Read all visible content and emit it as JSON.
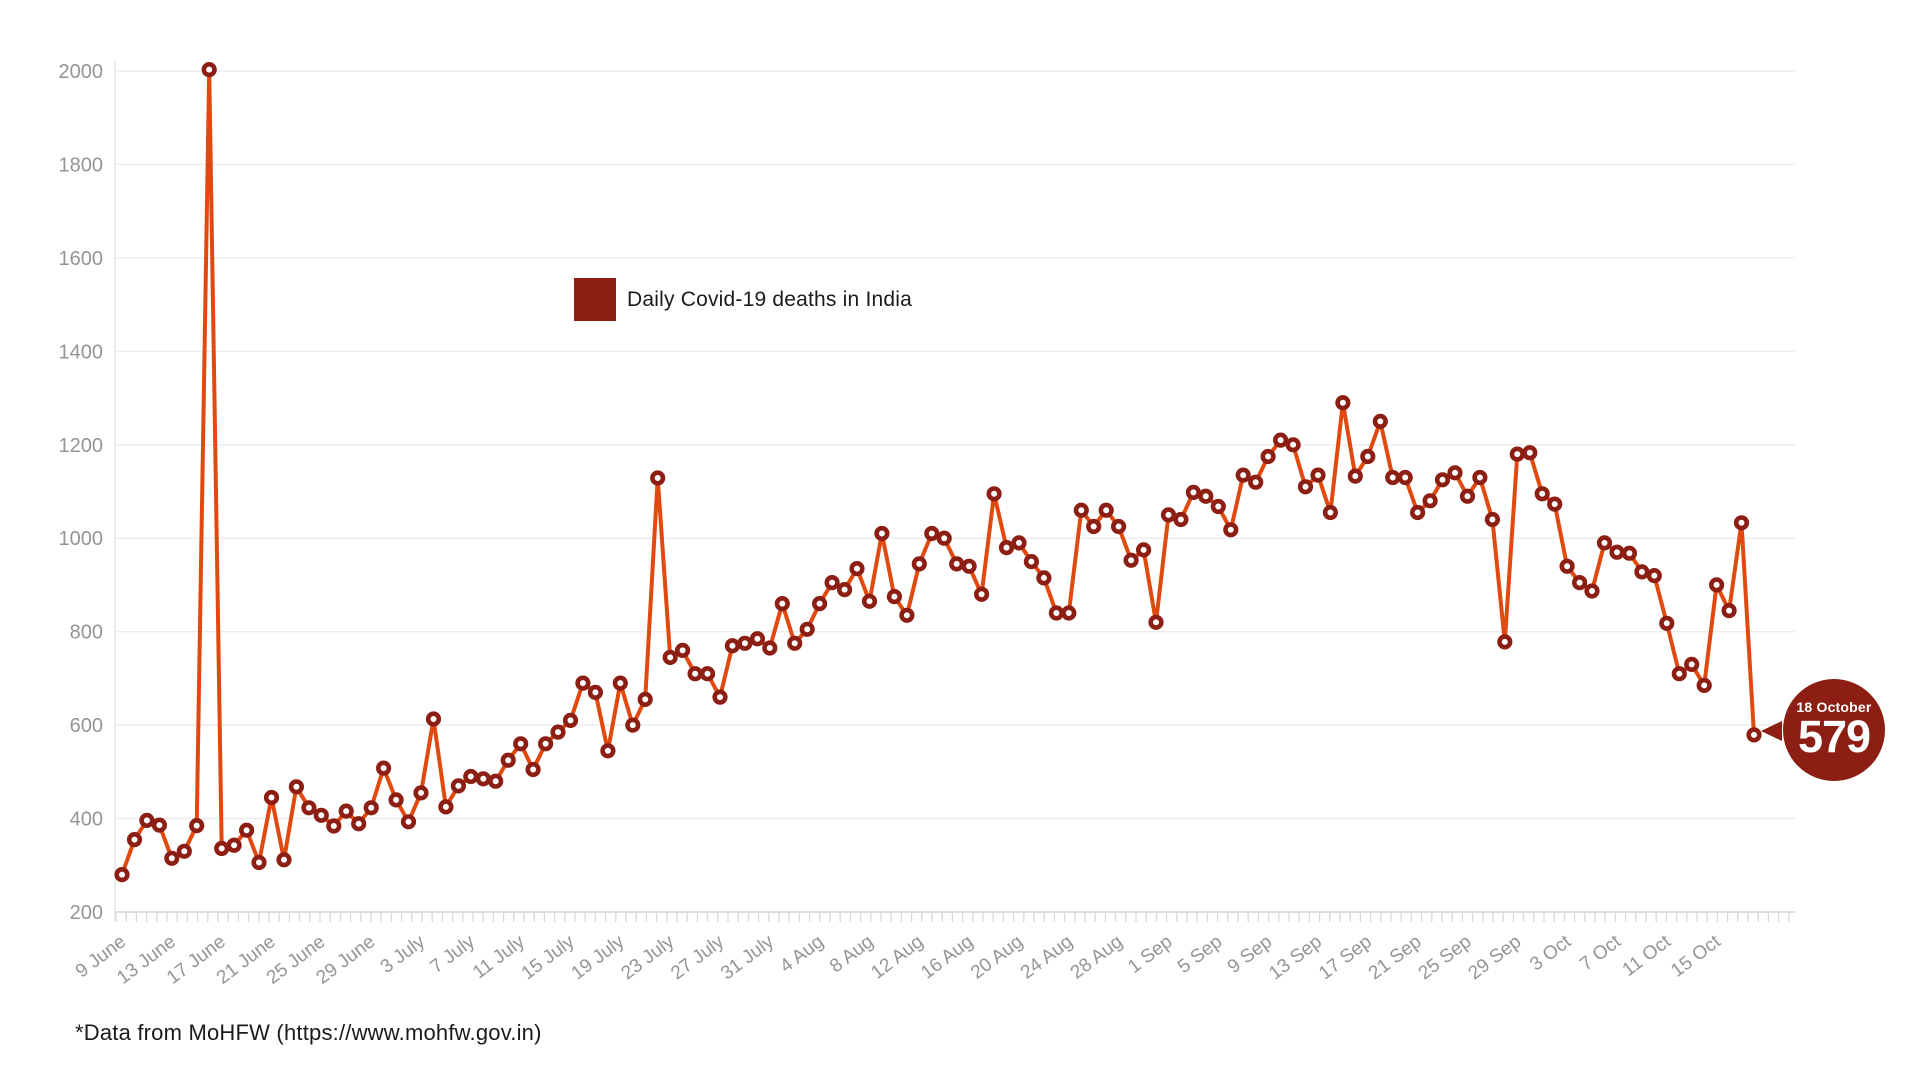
{
  "legend": {
    "label": "Daily Covid-19 deaths in India"
  },
  "footer": {
    "source_note": "*Data from MoHFW (https://www.mohfw.gov.in)"
  },
  "annotation": {
    "date_label": "18 October",
    "value_label": "579"
  },
  "colors": {
    "line": "#e1490e",
    "marker": "#8c1e13",
    "badge": "#8c1e13",
    "grid": "#ececec",
    "axis_line": "#d2d2d2",
    "tick": "#d9d9d9",
    "axis_text": "#989491",
    "text": "#1b1b1b",
    "background": "#ffffff"
  },
  "chart_data": {
    "type": "line",
    "title": "",
    "series_name": "Daily Covid-19 deaths in India",
    "xlabel": "",
    "ylabel": "",
    "grid": true,
    "legend_position": "top-center",
    "start_date_label": "9 June",
    "end_date_label": "18 October",
    "x_tick_label_interval_days": 4,
    "x_tick_labels": [
      "9 June",
      "13 June",
      "17 June",
      "21 June",
      "25 June",
      "29 June",
      "3 July",
      "7 July",
      "11 July",
      "15 July",
      "19 July",
      "23 July",
      "27 July",
      "31 July",
      "4 Aug",
      "8 Aug",
      "12 Aug",
      "16 Aug",
      "20 Aug",
      "24 Aug",
      "28 Aug",
      "1 Sep",
      "5 Sep",
      "9 Sep",
      "13 Sep",
      "17 Sep",
      "21 Sep",
      "25 Sep",
      "29 Sep",
      "3 Oct",
      "7 Oct",
      "11 Oct",
      "15 Oct"
    ],
    "y_ticks": [
      200,
      400,
      600,
      800,
      1000,
      1200,
      1400,
      1600,
      1800,
      2000
    ],
    "ylim": [
      200,
      2050
    ],
    "values": [
      280,
      355,
      396,
      386,
      315,
      330,
      385,
      2003,
      336,
      343,
      375,
      306,
      445,
      312,
      468,
      423,
      407,
      384,
      416,
      389,
      423,
      508,
      440,
      393,
      455,
      613,
      425,
      470,
      490,
      485,
      480,
      525,
      560,
      505,
      560,
      585,
      610,
      690,
      670,
      545,
      690,
      600,
      655,
      1129,
      745,
      760,
      710,
      710,
      660,
      770,
      775,
      785,
      765,
      860,
      775,
      805,
      860,
      905,
      890,
      935,
      865,
      1010,
      875,
      835,
      945,
      1010,
      1000,
      945,
      940,
      880,
      1095,
      980,
      990,
      950,
      915,
      840,
      840,
      1060,
      1025,
      1060,
      1025,
      953,
      975,
      820,
      1050,
      1040,
      1098,
      1090,
      1068,
      1018,
      1135,
      1120,
      1175,
      1210,
      1200,
      1110,
      1135,
      1055,
      1290,
      1133,
      1175,
      1250,
      1130,
      1130,
      1055,
      1080,
      1125,
      1140,
      1090,
      1130,
      1040,
      778,
      1180,
      1183,
      1095,
      1073,
      940,
      905,
      887,
      990,
      970,
      968,
      928,
      920,
      818,
      710,
      730,
      685,
      900,
      845,
      1033,
      579
    ],
    "highlight": {
      "index": 131,
      "date": "18 October",
      "value": 579
    }
  }
}
